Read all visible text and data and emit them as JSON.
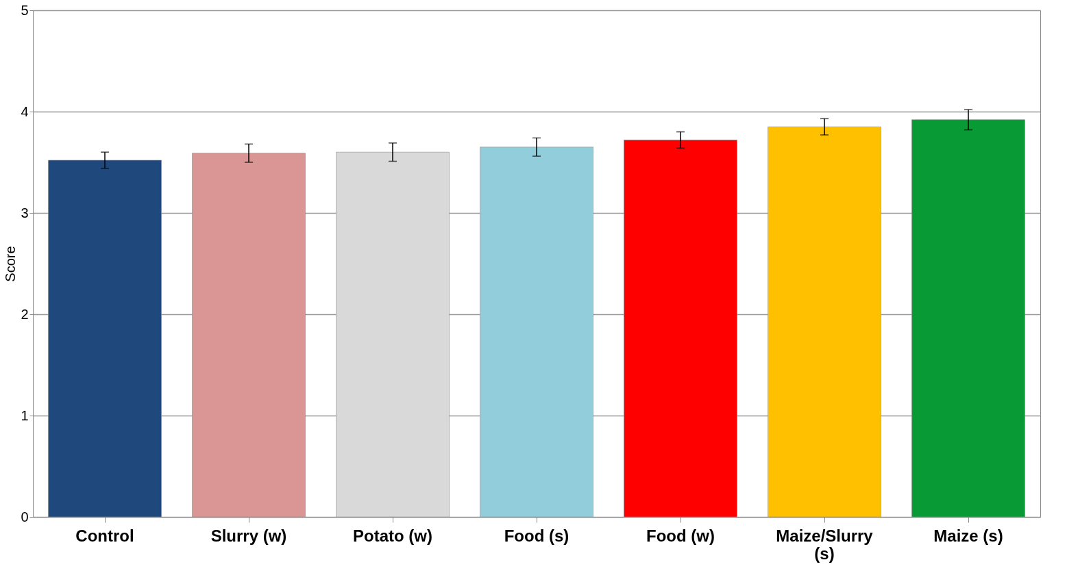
{
  "chart_data": {
    "type": "bar",
    "ylabel": "Score",
    "categories": [
      "Control",
      "Slurry (w)",
      "Potato (w)",
      "Food (s)",
      "Food (w)",
      "Maize/Slurry (s)",
      "Maize (s)"
    ],
    "values": [
      3.52,
      3.59,
      3.6,
      3.65,
      3.72,
      3.85,
      3.92
    ],
    "errors": [
      0.08,
      0.09,
      0.09,
      0.09,
      0.08,
      0.08,
      0.1
    ],
    "colors": [
      "#1f497d",
      "#da9694",
      "#d9d9d9",
      "#92cddc",
      "#ff0000",
      "#ffc000",
      "#089a35"
    ],
    "ylim": [
      0,
      5
    ],
    "yticks": [
      0,
      1,
      2,
      3,
      4,
      5
    ],
    "grid": "y"
  }
}
